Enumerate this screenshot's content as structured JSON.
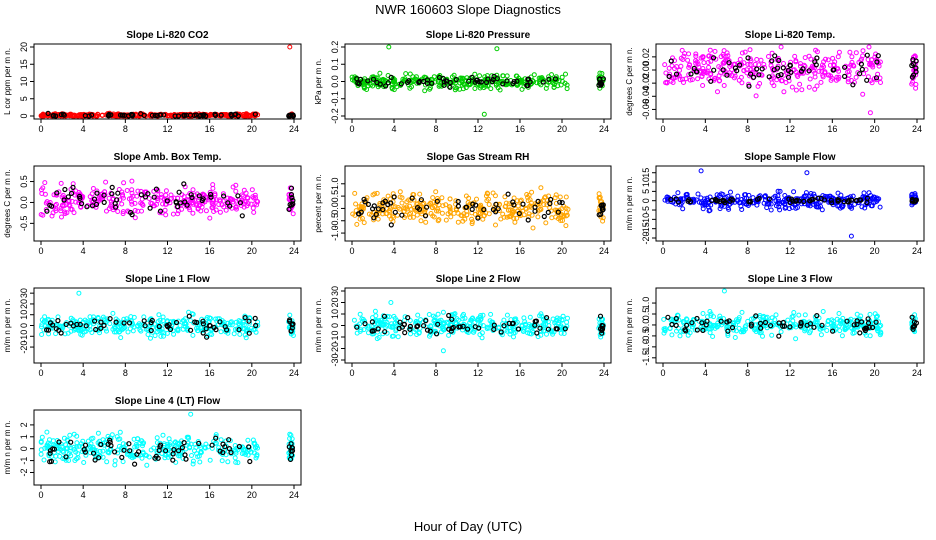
{
  "figure": {
    "title": "NWR  160603  Slope Diagnostics",
    "xlabel": "Hour of Day (UTC)"
  },
  "colors": {
    "black": "#000000",
    "red": "#ff0000",
    "green": "#00cc00",
    "magenta": "#ff00ff",
    "orange": "#ffa500",
    "blue": "#0000ff",
    "cyan": "#00ffff"
  },
  "chart_data": [
    {
      "type": "scatter",
      "title": "Slope Li-820 CO2",
      "ylabel": "L cor ppm per m n.",
      "xlim": [
        0,
        24
      ],
      "xticks": [
        "0",
        "4",
        "8",
        "12",
        "16",
        "20",
        "24"
      ],
      "ylim": [
        0,
        20
      ],
      "yticks": [
        0,
        5,
        10,
        15,
        20
      ],
      "ytick_labels": [
        "0",
        "5",
        "10",
        "15",
        "20"
      ],
      "color": "red",
      "center": 0.2,
      "spread": 0.3,
      "black_center": 0.2,
      "black_spread": 0.3,
      "outliers": [
        {
          "x": 23.6,
          "y": 20
        }
      ],
      "seed": 1
    },
    {
      "type": "scatter",
      "title": "Slope Li-820 Pressure",
      "ylabel": "kPa per m n.",
      "xlim": [
        0,
        24
      ],
      "xticks": [
        "0",
        "4",
        "8",
        "12",
        "16",
        "20",
        "24"
      ],
      "ylim": [
        -0.2,
        0.2
      ],
      "yticks": [
        -0.2,
        -0.1,
        0,
        0.1,
        0.2
      ],
      "ytick_labels": [
        "-0.2",
        "-0.1",
        "0.0",
        "0.1",
        "0.2"
      ],
      "color": "green",
      "center": 0,
      "spread": 0.03,
      "black_center": 0,
      "black_spread": 0.02,
      "outliers": [
        {
          "x": 3.5,
          "y": 0.2
        },
        {
          "x": 13.8,
          "y": 0.19
        },
        {
          "x": 12.6,
          "y": -0.19
        }
      ],
      "seed": 2
    },
    {
      "type": "scatter",
      "title": "Slope Li-820 Temp.",
      "ylabel": "degrees C per m n.",
      "xlim": [
        0,
        24
      ],
      "xticks": [
        "0",
        "4",
        "8",
        "12",
        "16",
        "20",
        "24"
      ],
      "ylim": [
        -0.07,
        0.035
      ],
      "yticks": [
        -0.06,
        -0.04,
        -0.02,
        0,
        0.02
      ],
      "ytick_labels": [
        "-0.06",
        "-0.04",
        "-0.02",
        "0.00",
        "0.02"
      ],
      "color": "magenta",
      "center": 0,
      "spread": 0.02,
      "black_center": 0,
      "black_spread": 0.015,
      "outliers": [
        {
          "x": 19.6,
          "y": -0.065
        }
      ],
      "seed": 3
    },
    {
      "type": "scatter",
      "title": "Slope Amb. Box Temp.",
      "ylabel": "degrees C per m n.",
      "xlim": [
        0,
        24
      ],
      "xticks": [
        "0",
        "4",
        "8",
        "12",
        "16",
        "20",
        "24"
      ],
      "ylim": [
        -0.85,
        0.8
      ],
      "yticks": [
        -0.5,
        0,
        0.5
      ],
      "ytick_labels": [
        "-0.5",
        "0.0",
        "0.5"
      ],
      "color": "magenta",
      "center": 0.05,
      "spread": 0.25,
      "black_center": 0.05,
      "black_spread": 0.25,
      "outliers": [],
      "seed": 4
    },
    {
      "type": "scatter",
      "title": "Slope Gas Stream RH",
      "ylabel": "percent per m n.",
      "xlim": [
        0,
        24
      ],
      "xticks": [
        "0",
        "4",
        "8",
        "12",
        "16",
        "20",
        "24"
      ],
      "ylim": [
        -1.2,
        1.6
      ],
      "yticks": [
        -1,
        -0.5,
        0,
        0.5,
        1
      ],
      "ytick_labels": [
        "-1.0",
        "-0.5",
        "0.0",
        "0.5",
        "1.0"
      ],
      "color": "orange",
      "center": 0,
      "spread": 0.45,
      "black_center": 0,
      "black_spread": 0.35,
      "outliers": [],
      "seed": 5
    },
    {
      "type": "scatter",
      "title": "Slope Sample Flow",
      "ylabel": "m/m n per m n.",
      "xlim": [
        0,
        24
      ],
      "xticks": [
        "0",
        "4",
        "8",
        "12",
        "16",
        "20",
        "24"
      ],
      "ylim": [
        -20,
        17
      ],
      "yticks": [
        -20,
        -15,
        -10,
        -5,
        0,
        5,
        10,
        15
      ],
      "ytick_labels": [
        "-20",
        "-15",
        "-10",
        "-5",
        "0",
        "5",
        "10",
        "15"
      ],
      "color": "blue",
      "center": 0,
      "spread": 3,
      "black_center": 0,
      "black_spread": 1,
      "outliers": [
        {
          "x": 3.6,
          "y": 16
        },
        {
          "x": 13.6,
          "y": 15
        },
        {
          "x": 17.8,
          "y": -19
        }
      ],
      "seed": 6
    },
    {
      "type": "scatter",
      "title": "Slope Line 1 Flow",
      "ylabel": "m/m n per m n.",
      "xlim": [
        0,
        24
      ],
      "xticks": [
        "0",
        "4",
        "8",
        "12",
        "16",
        "20",
        "24"
      ],
      "ylim": [
        -32,
        32
      ],
      "yticks": [
        -20,
        -10,
        0,
        10,
        20,
        30
      ],
      "ytick_labels": [
        "-20",
        "-10",
        "0",
        "10",
        "20",
        "30"
      ],
      "color": "cyan",
      "center": 0,
      "spread": 7,
      "black_center": 0,
      "black_spread": 6,
      "outliers": [
        {
          "x": 3.6,
          "y": 30
        }
      ],
      "seed": 7
    },
    {
      "type": "scatter",
      "title": "Slope Line 2 Flow",
      "ylabel": "m/m n per m n.",
      "xlim": [
        0,
        24
      ],
      "xticks": [
        "0",
        "4",
        "8",
        "12",
        "16",
        "20",
        "24"
      ],
      "ylim": [
        -30,
        30
      ],
      "yticks": [
        -30,
        -20,
        -10,
        0,
        10,
        20,
        30
      ],
      "ytick_labels": [
        "-30",
        "-20",
        "-10",
        "0",
        "10",
        "20",
        "30"
      ],
      "color": "cyan",
      "center": 0,
      "spread": 7,
      "black_center": 0,
      "black_spread": 6,
      "outliers": [
        {
          "x": 3.7,
          "y": 20
        },
        {
          "x": 8.7,
          "y": -22
        }
      ],
      "seed": 8
    },
    {
      "type": "scatter",
      "title": "Slope Line 3 Flow",
      "ylabel": "m/m n per m n.",
      "xlim": [
        0,
        24
      ],
      "xticks": [
        "0",
        "4",
        "8",
        "12",
        "16",
        "20",
        "24"
      ],
      "ylim": [
        -1.6,
        1.55
      ],
      "yticks": [
        -1.5,
        -1,
        -0.5,
        0,
        0.5,
        1
      ],
      "ytick_labels": [
        "-1.5",
        "-1.0",
        "-0.5",
        "0.0",
        "0.5",
        "1.0"
      ],
      "color": "cyan",
      "center": 0,
      "spread": 0.35,
      "black_center": 0,
      "black_spread": 0.3,
      "outliers": [
        {
          "x": 5.8,
          "y": 1.55
        }
      ],
      "seed": 9
    },
    {
      "type": "scatter",
      "title": "Slope Line 4 (LT) Flow",
      "ylabel": "m/m n per m n.",
      "xlim": [
        0,
        24
      ],
      "xticks": [
        "0",
        "4",
        "8",
        "12",
        "16",
        "20",
        "24"
      ],
      "ylim": [
        -2.8,
        3.0
      ],
      "yticks": [
        -2,
        -1,
        0,
        1,
        2
      ],
      "ytick_labels": [
        "-2",
        "-1",
        "0",
        "1",
        "2"
      ],
      "color": "cyan",
      "center": 0,
      "spread": 0.8,
      "black_center": 0,
      "black_spread": 0.7,
      "outliers": [
        {
          "x": 14.2,
          "y": 2.9
        }
      ],
      "seed": 10
    }
  ]
}
